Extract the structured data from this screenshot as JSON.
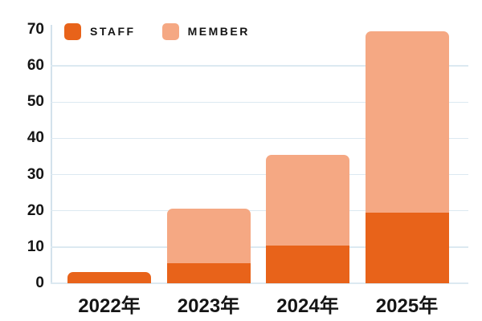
{
  "chart_data": {
    "type": "bar",
    "variant": "stacked",
    "title": "",
    "xlabel": "",
    "ylabel": "",
    "categories": [
      "2022年",
      "2023年",
      "2024年",
      "2025年"
    ],
    "series": [
      {
        "name": "STAFF",
        "color": "#e8631a",
        "values": [
          3,
          5.5,
          10.5,
          19.5
        ]
      },
      {
        "name": "MEMBER",
        "color": "#f5a883",
        "values": [
          0,
          15,
          25,
          50
        ]
      }
    ],
    "stack_totals": [
      3,
      20.5,
      35.5,
      69.5
    ],
    "ylim": [
      0,
      70
    ],
    "yticks": [
      0,
      10,
      20,
      30,
      40,
      50,
      60,
      70
    ],
    "grid": "horizontal",
    "grid_color": "#dce9f1",
    "axis_color": "#d3e2ec",
    "text_color": "#151515",
    "background": "#ffffff",
    "legend_position": "top-left"
  }
}
